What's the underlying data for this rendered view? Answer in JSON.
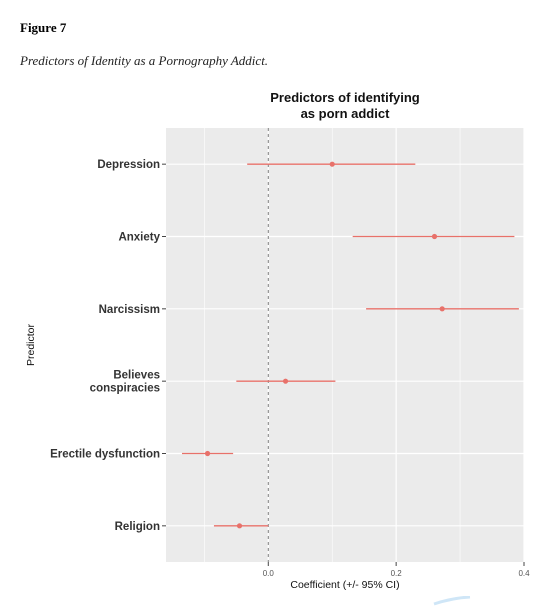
{
  "figure": {
    "label": "Figure 7",
    "caption": "Predictors of Identity as a Pornography Addict."
  },
  "colors": {
    "panel": "#ebebeb",
    "grid": "#ffffff",
    "point": "#e8716a",
    "zero_line": "#7f7f7f"
  },
  "chart_data": {
    "type": "scatter",
    "subtype": "coefficient-plot-with-error-bars",
    "title_lines": [
      "Predictors of identifying",
      "as porn addict"
    ],
    "xlabel": "Coefficient (+/- 95% CI)",
    "ylabel": "Predictor",
    "xlim": [
      -0.16,
      0.4
    ],
    "xticks": [
      0.0,
      0.2,
      0.4
    ],
    "xtick_labels": [
      "0.0",
      "0.2",
      "0.4"
    ],
    "grid": true,
    "reference_line": 0.0,
    "predictors": [
      {
        "label": [
          "Depression"
        ],
        "estimate": 0.1,
        "ci_low": -0.033,
        "ci_high": 0.23
      },
      {
        "label": [
          "Anxiety"
        ],
        "estimate": 0.26,
        "ci_low": 0.132,
        "ci_high": 0.385
      },
      {
        "label": [
          "Narcissism"
        ],
        "estimate": 0.272,
        "ci_low": 0.153,
        "ci_high": 0.392
      },
      {
        "label": [
          "Believes",
          "conspiracies"
        ],
        "estimate": 0.027,
        "ci_low": -0.05,
        "ci_high": 0.105
      },
      {
        "label": [
          "Erectile dysfunction"
        ],
        "estimate": -0.095,
        "ci_low": -0.135,
        "ci_high": -0.055
      },
      {
        "label": [
          "Religion"
        ],
        "estimate": -0.045,
        "ci_low": -0.085,
        "ci_high": 0.0
      }
    ]
  }
}
